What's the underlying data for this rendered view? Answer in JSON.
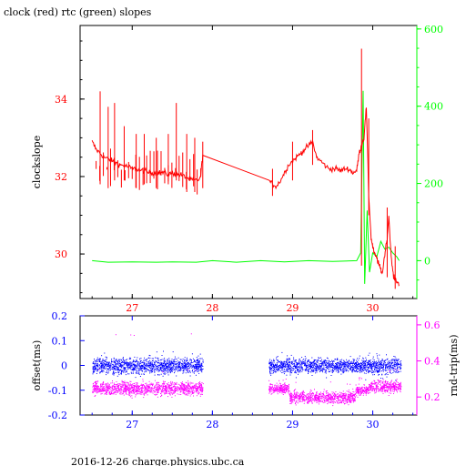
{
  "title": "clock (red) rtc (green) slopes",
  "footer": "2016-12-26 charge.physics.ubc.ca",
  "colors": {
    "clock": "#ff0000",
    "rtc": "#00ff00",
    "offset": "#0000ff",
    "rndtrip": "#ff00ff",
    "axis": "#000000"
  },
  "chart_data": [
    {
      "type": "line",
      "title": "clock (red) rtc (green) slopes",
      "ylabel": "clockslope",
      "y2label": "",
      "xlim": [
        26.35,
        30.55
      ],
      "xticks": [
        27,
        28,
        29,
        30
      ],
      "ylim": [
        28.85,
        35.9
      ],
      "yticks": [
        30,
        32,
        34
      ],
      "y2lim": [
        -98,
        609
      ],
      "y2ticks": [
        0,
        200,
        400,
        600
      ],
      "series": [
        {
          "name": "clock",
          "axis": "left",
          "color": "#ff0000",
          "x": [
            26.5,
            26.55,
            26.6,
            26.65,
            26.7,
            26.75,
            26.8,
            26.85,
            26.9,
            26.95,
            27.0,
            27.05,
            27.1,
            27.15,
            27.2,
            27.25,
            27.3,
            27.35,
            27.4,
            27.45,
            27.5,
            27.55,
            27.6,
            27.65,
            27.7,
            27.75,
            27.8,
            27.85,
            27.88,
            28.7,
            28.75,
            28.8,
            28.85,
            28.9,
            28.95,
            29.0,
            29.05,
            29.1,
            29.15,
            29.2,
            29.25,
            29.3,
            29.35,
            29.4,
            29.45,
            29.5,
            29.55,
            29.6,
            29.65,
            29.7,
            29.75,
            29.8,
            29.83,
            29.86,
            29.89,
            29.92,
            29.95,
            29.98,
            30.0,
            30.02,
            30.05,
            30.08,
            30.1,
            30.12,
            30.15,
            30.18,
            30.2,
            30.23,
            30.26,
            30.3,
            30.33
          ],
          "y": [
            32.9,
            32.7,
            32.6,
            32.5,
            32.45,
            32.4,
            32.35,
            32.3,
            32.28,
            32.25,
            32.2,
            32.2,
            32.15,
            32.15,
            32.1,
            32.1,
            32.1,
            32.1,
            32.1,
            32.05,
            32.1,
            32.05,
            32.05,
            32.0,
            31.95,
            31.9,
            31.9,
            31.95,
            32.55,
            31.9,
            31.8,
            31.75,
            31.9,
            32.1,
            32.3,
            32.4,
            32.5,
            32.6,
            32.7,
            32.8,
            32.9,
            32.5,
            32.4,
            32.3,
            32.2,
            32.2,
            32.2,
            32.15,
            32.2,
            32.2,
            32.1,
            32.15,
            32.6,
            32.8,
            33.0,
            33.8,
            31.5,
            30.4,
            30.2,
            30.0,
            29.9,
            29.7,
            29.6,
            29.5,
            30.0,
            30.4,
            31.0,
            29.9,
            29.4,
            29.3,
            29.2
          ],
          "spikes": [
            [
              26.6,
              34.2,
              31.8
            ],
            [
              26.7,
              33.8,
              31.7
            ],
            [
              26.78,
              33.9,
              31.9
            ],
            [
              26.9,
              33.3,
              31.9
            ],
            [
              27.05,
              33.1,
              31.7
            ],
            [
              27.15,
              33.1,
              31.8
            ],
            [
              27.3,
              33.0,
              31.7
            ],
            [
              27.45,
              33.1,
              31.8
            ],
            [
              27.55,
              33.9,
              31.9
            ],
            [
              27.68,
              33.1,
              31.6
            ],
            [
              27.78,
              33.0,
              31.6
            ],
            [
              27.88,
              32.9,
              31.7
            ],
            [
              28.75,
              32.2,
              31.5
            ],
            [
              29.0,
              32.9,
              31.9
            ],
            [
              29.25,
              33.2,
              32.3
            ],
            [
              29.86,
              35.3,
              29.7
            ],
            [
              29.95,
              33.5,
              31.0
            ],
            [
              30.18,
              31.2,
              29.4
            ],
            [
              30.28,
              30.2,
              29.1
            ]
          ]
        },
        {
          "name": "rtc",
          "axis": "right",
          "color": "#00ff00",
          "x": [
            26.5,
            26.7,
            27.0,
            27.3,
            27.5,
            27.8,
            28.0,
            28.3,
            28.6,
            28.9,
            29.2,
            29.5,
            29.8,
            29.85,
            29.88,
            29.9,
            29.93,
            29.96,
            30.0,
            30.05,
            30.1,
            30.15,
            30.2,
            30.25,
            30.3,
            30.33
          ],
          "y": [
            0,
            -4,
            -3,
            -4,
            -3,
            -4,
            0,
            -4,
            0,
            -3,
            0,
            -2,
            0,
            20,
            440,
            -60,
            130,
            -30,
            20,
            10,
            50,
            30,
            35,
            20,
            10,
            0
          ]
        }
      ]
    },
    {
      "type": "scatter",
      "ylabel": "offset(ms)",
      "y2label": "rnd-trip(ms)",
      "xlim": [
        26.35,
        30.55
      ],
      "xticks": [
        27,
        28,
        29,
        30
      ],
      "ylim": [
        -0.2,
        0.2
      ],
      "yticks": [
        -0.2,
        -0.1,
        0,
        0.1,
        0.2
      ],
      "y2lim": [
        0.1,
        0.65
      ],
      "y2ticks": [
        0.2,
        0.4,
        0.6
      ],
      "series": [
        {
          "name": "offset",
          "axis": "left",
          "color": "#0000ff",
          "segments": [
            {
              "x": [
                26.5,
                27.88
              ],
              "center": 0.0,
              "spread": 0.035,
              "outliers": [
                0.05,
                -0.04
              ]
            },
            {
              "x": [
                28.7,
                29.88
              ],
              "center": 0.0,
              "spread": 0.03,
              "outliers": [
                0.045,
                -0.04
              ]
            },
            {
              "x": [
                29.88,
                30.35
              ],
              "center": 0.0,
              "spread": 0.035,
              "outliers": [
                0.05,
                -0.05
              ]
            }
          ]
        },
        {
          "name": "rnd-trip",
          "axis": "right",
          "color": "#ff00ff",
          "segments": [
            {
              "x": [
                26.5,
                27.88
              ],
              "center": 0.25,
              "spread": 0.04,
              "outliers": [
                0.55,
                0.35
              ]
            },
            {
              "x": [
                28.7,
                28.95
              ],
              "center": 0.25,
              "spread": 0.03,
              "outliers": [
                0.3
              ]
            },
            {
              "x": [
                28.95,
                29.78
              ],
              "center": 0.2,
              "spread": 0.035,
              "outliers": [
                0.28
              ]
            },
            {
              "x": [
                29.78,
                29.95
              ],
              "center": 0.24,
              "spread": 0.03,
              "outliers": [
                0.3
              ]
            },
            {
              "x": [
                29.95,
                30.35
              ],
              "center": 0.26,
              "spread": 0.035,
              "outliers": [
                0.35
              ]
            }
          ]
        }
      ]
    }
  ]
}
